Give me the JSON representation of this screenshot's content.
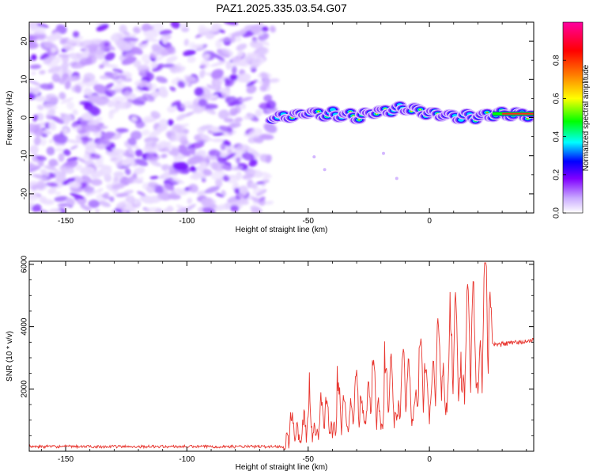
{
  "title": "PAZ1.2025.335.03.54.G07",
  "chart_data": [
    {
      "type": "heatmap",
      "xlabel": "Height of straight line (km)",
      "ylabel": "Frequency (Hz)",
      "xlim": [
        -165,
        43
      ],
      "ylim": [
        -25,
        25
      ],
      "xticks": [
        "-150",
        "-100",
        "-50",
        "0"
      ],
      "xtick_values": [
        -150,
        -100,
        -50,
        0
      ],
      "yticks": [
        "-20",
        "-10",
        "0",
        "10",
        "20"
      ],
      "ytick_values": [
        -20,
        -10,
        0,
        10,
        20
      ],
      "noise_region_x": [
        -165,
        -63
      ],
      "signal_track": {
        "x": [
          -65,
          -50,
          -30,
          -10,
          10,
          30,
          43
        ],
        "freq": [
          0,
          1.2,
          0.4,
          2.5,
          0.3,
          0.6,
          1.0
        ]
      },
      "colorbar": {
        "label": "Normalized spectral amplitude",
        "ticks": [
          "0.0",
          "0.2",
          "0.4",
          "0.6",
          "0.8"
        ],
        "tick_values": [
          0,
          0.2,
          0.4,
          0.6,
          0.8
        ],
        "range": [
          0,
          1
        ],
        "colors": [
          "#ffffff",
          "#c8a8ff",
          "#8000ff",
          "#0000ff",
          "#00ffff",
          "#00ff00",
          "#ffff00",
          "#ff8000",
          "#ff0000",
          "#ff00a0"
        ]
      }
    },
    {
      "type": "line",
      "xlabel": "Height of straight line (km)",
      "ylabel": "SNR (10 * v/v)",
      "xlim": [
        -165,
        43
      ],
      "ylim": [
        0,
        6100
      ],
      "xticks": [
        "-150",
        "-100",
        "-50",
        "0"
      ],
      "xtick_values": [
        -150,
        -100,
        -50,
        0
      ],
      "yticks": [
        "2000",
        "4000",
        "6000"
      ],
      "ytick_values": [
        2000,
        4000,
        6000
      ],
      "color": "#e8352e",
      "series_keypoints": {
        "x": [
          -165,
          -60,
          -58,
          -40,
          -20,
          0,
          15,
          25,
          26,
          43
        ],
        "y": [
          150,
          150,
          900,
          1600,
          2400,
          3100,
          4500,
          5700,
          3400,
          3550
        ]
      }
    }
  ]
}
